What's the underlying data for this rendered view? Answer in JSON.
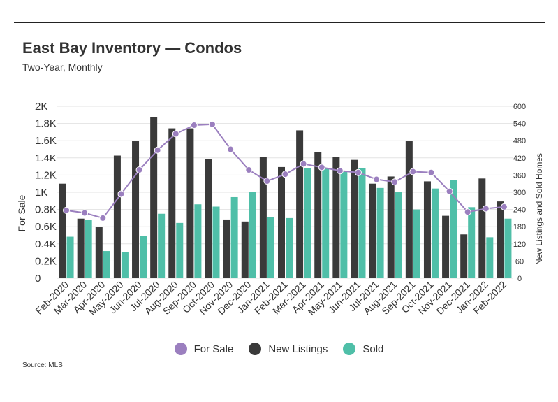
{
  "header": {
    "title": "East Bay Inventory — Condos",
    "subtitle": "Two-Year, Monthly"
  },
  "footer": {
    "source": "Source:  MLS"
  },
  "colors": {
    "for_sale": "#9b7fbf",
    "new_listings": "#3a3a3a",
    "sold": "#4fbfa8",
    "grid": "#e3e3e3",
    "text": "#333333"
  },
  "chart_data": {
    "type": "bar",
    "categories": [
      "Feb-2020",
      "Mar-2020",
      "Apr-2020",
      "May-2020",
      "Jun-2020",
      "Jul-2020",
      "Aug-2020",
      "Sep-2020",
      "Oct-2020",
      "Nov-2020",
      "Dec-2020",
      "Jan-2021",
      "Feb-2021",
      "Mar-2021",
      "Apr-2021",
      "May-2021",
      "Jun-2021",
      "Jul-2021",
      "Aug-2021",
      "Sep-2021",
      "Oct-2021",
      "Nov-2021",
      "Dec-2021",
      "Jan-2022",
      "Feb-2022"
    ],
    "ylabel": "For Sale",
    "y2label": "New Listings and Sold Homes",
    "ylim": [
      0,
      2000
    ],
    "y2lim": [
      0,
      600
    ],
    "y_ticks": [
      {
        "value": 0,
        "label": "0"
      },
      {
        "value": 200,
        "label": "0.2K"
      },
      {
        "value": 400,
        "label": "0.4K"
      },
      {
        "value": 600,
        "label": "0.6K"
      },
      {
        "value": 800,
        "label": "0.8K"
      },
      {
        "value": 1000,
        "label": "1K"
      },
      {
        "value": 1200,
        "label": "1.2K"
      },
      {
        "value": 1400,
        "label": "1.4K"
      },
      {
        "value": 1600,
        "label": "1.6K"
      },
      {
        "value": 1800,
        "label": "1.8K"
      },
      {
        "value": 2000,
        "label": "2K"
      }
    ],
    "y2_ticks": [
      {
        "value": 0,
        "label": "0"
      },
      {
        "value": 60,
        "label": "60"
      },
      {
        "value": 120,
        "label": "120"
      },
      {
        "value": 180,
        "label": "180"
      },
      {
        "value": 240,
        "label": "240"
      },
      {
        "value": 300,
        "label": "300"
      },
      {
        "value": 360,
        "label": "360"
      },
      {
        "value": 420,
        "label": "420"
      },
      {
        "value": 480,
        "label": "480"
      },
      {
        "value": 540,
        "label": "540"
      },
      {
        "value": 600,
        "label": "600"
      }
    ],
    "series": [
      {
        "name": "For Sale",
        "kind": "line",
        "axis": "left",
        "values": [
          790,
          760,
          700,
          980,
          1260,
          1490,
          1680,
          1780,
          1790,
          1500,
          1260,
          1130,
          1210,
          1330,
          1290,
          1250,
          1230,
          1150,
          1120,
          1240,
          1230,
          1010,
          770,
          810,
          830
        ]
      },
      {
        "name": "New Listings",
        "kind": "bar",
        "axis": "right",
        "values": [
          330,
          208,
          178,
          428,
          478,
          563,
          523,
          523,
          415,
          205,
          198,
          423,
          388,
          516,
          440,
          423,
          413,
          330,
          355,
          478,
          338,
          218,
          153,
          348,
          268
        ]
      },
      {
        "name": "Sold",
        "kind": "bar",
        "axis": "right",
        "values": [
          145,
          203,
          95,
          92,
          148,
          225,
          193,
          258,
          250,
          283,
          300,
          213,
          210,
          383,
          383,
          373,
          383,
          315,
          300,
          240,
          313,
          343,
          248,
          143,
          208
        ]
      }
    ],
    "legend": {
      "position": "bottom"
    },
    "grid": true
  }
}
